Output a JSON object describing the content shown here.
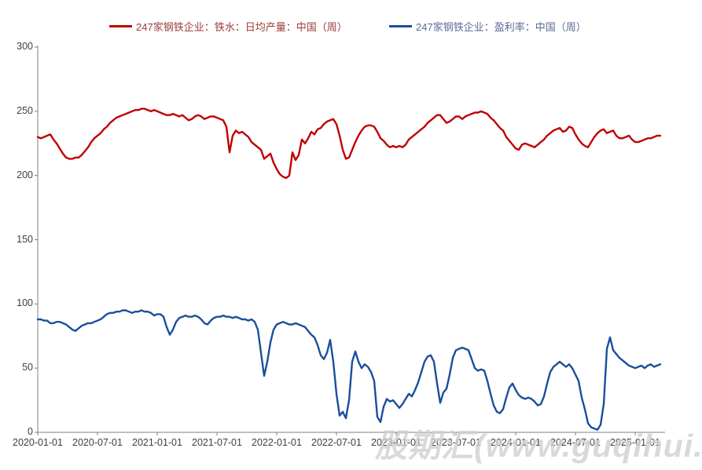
{
  "legend": {
    "series1_label": "247家钢铁企业：铁水：日均产量：中国（周）",
    "series2_label": "247家钢铁企业：盈利率：中国（周）"
  },
  "watermark_text": "股期汇(www.guqihui.cn)",
  "colors": {
    "series1_line": "#c00000",
    "series2_line": "#1a4f9c",
    "series1_text": "#9e3b3b",
    "series2_text": "#5a6b96",
    "axis": "#7f7f7f",
    "tick_text": "#3f3f3f",
    "watermark": "#d0d0d0"
  },
  "chart_data": {
    "type": "line",
    "title": "",
    "xlabel": "",
    "ylabel": "",
    "grid": false,
    "legend_position": "top",
    "x_axis": {
      "tick_labels": [
        "2020-01-01",
        "2020-07-01",
        "2021-01-01",
        "2021-07-01",
        "2022-01-01",
        "2022-07-01",
        "2023-01-01",
        "2023-07-01",
        "2024-01-01",
        "2024-07-01",
        "2025-01-01"
      ],
      "start": "2020-01-01",
      "end": "2025-03-10",
      "sampling": "weekly series, uniform ~9.6-day spacing between stored points"
    },
    "y_axis": {
      "min": 0,
      "max": 300,
      "ticks": [
        300,
        250,
        200,
        150,
        100,
        50,
        0
      ]
    },
    "series": [
      {
        "name": "247家钢铁企业：铁水：日均产量：中国（周）",
        "color": "#c00000",
        "values": [
          230,
          229,
          230,
          231,
          232,
          228,
          225,
          221,
          217,
          214,
          213,
          213,
          214,
          214,
          216,
          219,
          222,
          226,
          229,
          231,
          233,
          236,
          238,
          241,
          243,
          245,
          246,
          247,
          248,
          249,
          250,
          251,
          251,
          252,
          252,
          251,
          250,
          251,
          250,
          249,
          248,
          247,
          247,
          248,
          247,
          246,
          247,
          245,
          243,
          244,
          246,
          247,
          246,
          244,
          245,
          246,
          246,
          245,
          244,
          243,
          238,
          218,
          231,
          235,
          233,
          234,
          232,
          230,
          226,
          224,
          222,
          220,
          213,
          215,
          217,
          210,
          205,
          201,
          199,
          198,
          200,
          218,
          212,
          216,
          228,
          225,
          229,
          234,
          232,
          236,
          237,
          240,
          242,
          243,
          244,
          240,
          231,
          220,
          213,
          214,
          220,
          226,
          231,
          235,
          238,
          239,
          239,
          238,
          234,
          229,
          227,
          224,
          222,
          223,
          222,
          223,
          222,
          224,
          228,
          230,
          232,
          234,
          236,
          238,
          241,
          243,
          245,
          247,
          247,
          244,
          241,
          242,
          244,
          246,
          246,
          244,
          246,
          247,
          248,
          249,
          249,
          250,
          249,
          248,
          245,
          243,
          240,
          237,
          235,
          230,
          227,
          224,
          221,
          220,
          224,
          225,
          224,
          223,
          222,
          224,
          226,
          228,
          231,
          233,
          235,
          236,
          237,
          234,
          235,
          238,
          237,
          232,
          228,
          225,
          223,
          222,
          226,
          230,
          233,
          235,
          236,
          233,
          234,
          235,
          231,
          229,
          229,
          230,
          231,
          228,
          226,
          226,
          227,
          228,
          229,
          229,
          230,
          231,
          231
        ]
      },
      {
        "name": "247家钢铁企业：盈利率：中国（周）",
        "color": "#1a4f9c",
        "values": [
          88,
          88,
          87,
          87,
          85,
          85,
          86,
          86,
          85,
          84,
          82,
          80,
          79,
          81,
          83,
          84,
          85,
          85,
          86,
          87,
          88,
          90,
          92,
          93,
          93,
          94,
          94,
          95,
          95,
          94,
          93,
          94,
          94,
          95,
          94,
          94,
          93,
          91,
          92,
          92,
          90,
          82,
          76,
          80,
          86,
          89,
          90,
          91,
          90,
          90,
          91,
          90,
          88,
          85,
          84,
          87,
          89,
          90,
          90,
          91,
          90,
          90,
          89,
          90,
          89,
          88,
          88,
          87,
          88,
          86,
          80,
          62,
          44,
          55,
          70,
          80,
          84,
          85,
          86,
          85,
          84,
          84,
          85,
          84,
          83,
          82,
          79,
          76,
          74,
          68,
          60,
          57,
          62,
          72,
          55,
          30,
          13,
          16,
          11,
          25,
          55,
          63,
          55,
          50,
          53,
          51,
          47,
          40,
          12,
          8,
          20,
          26,
          24,
          25,
          22,
          19,
          22,
          26,
          30,
          28,
          33,
          39,
          47,
          55,
          59,
          60,
          55,
          38,
          23,
          31,
          34,
          45,
          58,
          64,
          65,
          66,
          65,
          64,
          57,
          50,
          48,
          49,
          48,
          40,
          30,
          21,
          16,
          15,
          18,
          27,
          35,
          38,
          33,
          29,
          27,
          26,
          27,
          26,
          24,
          21,
          22,
          28,
          38,
          47,
          51,
          53,
          55,
          53,
          51,
          53,
          50,
          45,
          40,
          27,
          18,
          7,
          4,
          3,
          2,
          6,
          22,
          65,
          74,
          64,
          61,
          58,
          56,
          54,
          52,
          51,
          50,
          51,
          52,
          50,
          52,
          53,
          51,
          52,
          53
        ]
      }
    ]
  }
}
